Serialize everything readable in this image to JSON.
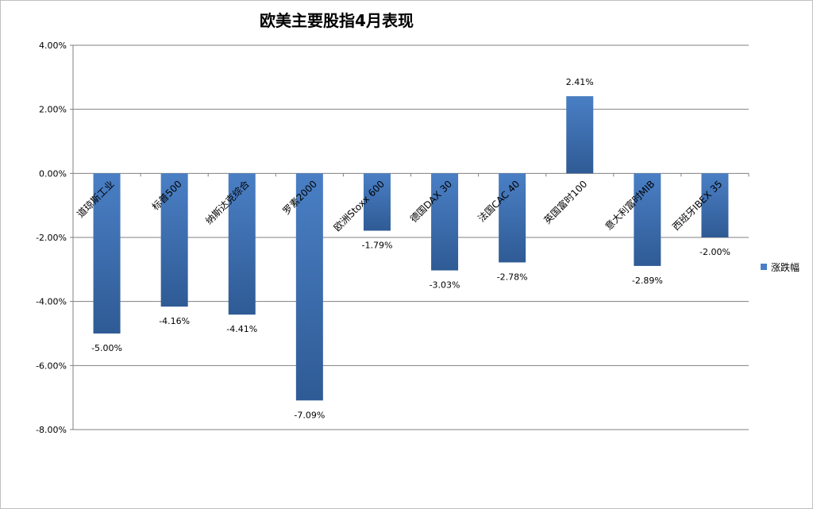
{
  "chart_data": {
    "type": "bar",
    "title": "欧美主要股指4月表现",
    "categories": [
      "道琼斯工业",
      "标普500",
      "纳斯达克综合",
      "罗素2000",
      "欧洲Stoxx 600",
      "德国DAX 30",
      "法国CAC 40",
      "英国富时100",
      "意大利富时MIB",
      "西班牙IBEX 35"
    ],
    "series": [
      {
        "name": "涨跌幅",
        "values": [
          -5.0,
          -4.16,
          -4.41,
          -7.09,
          -1.79,
          -3.03,
          -2.78,
          2.41,
          -2.89,
          -2.0
        ]
      }
    ],
    "data_labels": [
      "-5.00%",
      "-4.16%",
      "-4.41%",
      "-7.09%",
      "-1.79%",
      "-3.03%",
      "-2.78%",
      "2.41%",
      "-2.89%",
      "-2.00%"
    ],
    "y_ticks": [
      "4.00%",
      "2.00%",
      "0.00%",
      "-2.00%",
      "-4.00%",
      "-6.00%",
      "-8.00%"
    ],
    "ylim": [
      -8,
      4
    ],
    "grid": true,
    "legend_position": "right",
    "colors": {
      "bar": "#4a7fc5",
      "bar_dark": "#2f5b95",
      "grid": "#808080"
    }
  }
}
